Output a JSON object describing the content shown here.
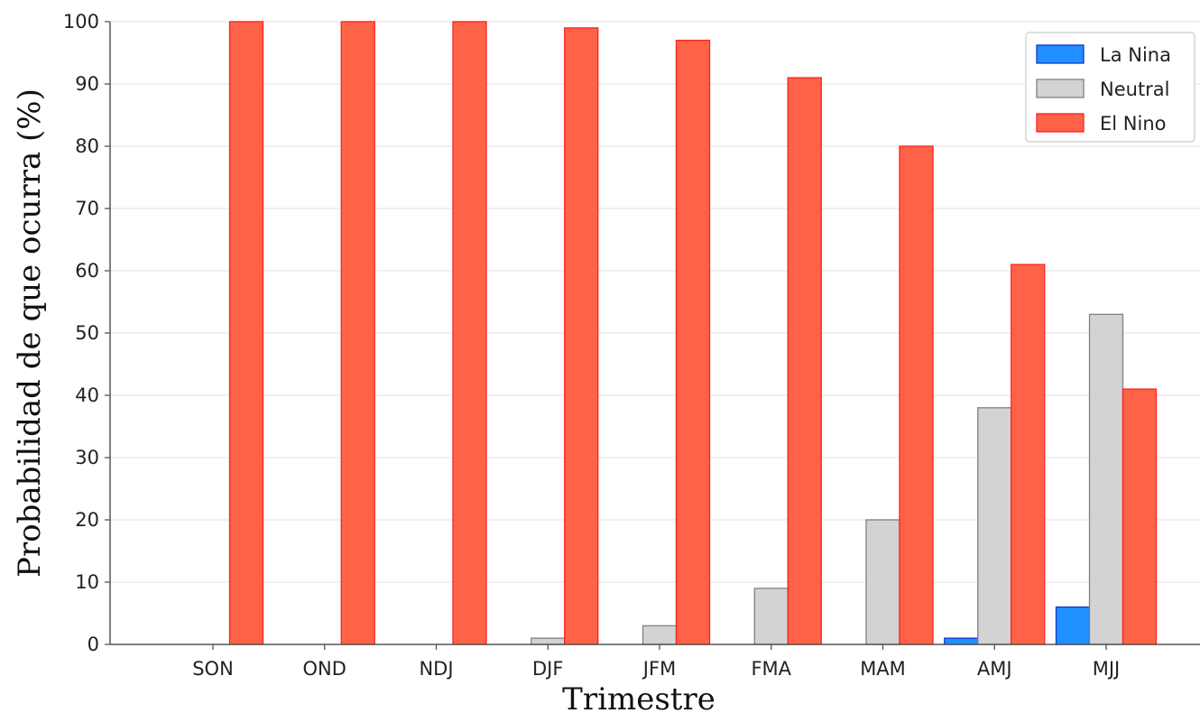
{
  "chart_data": {
    "type": "bar",
    "title": "",
    "xlabel": "Trimestre",
    "ylabel": "Probabilidad de que ocurra (%)",
    "categories": [
      "SON",
      "OND",
      "NDJ",
      "DJF",
      "JFM",
      "FMA",
      "MAM",
      "AMJ",
      "MJJ"
    ],
    "ylim": [
      0,
      100
    ],
    "yticks": [
      0,
      10,
      20,
      30,
      40,
      50,
      60,
      70,
      80,
      90,
      100
    ],
    "grid": "horizontal",
    "legend_position": "top-right",
    "series": [
      {
        "name": "La Nina",
        "color": "#1e90ff",
        "edge": "#1a33cc",
        "values": [
          0,
          0,
          0,
          0,
          0,
          0,
          0,
          1,
          6
        ]
      },
      {
        "name": "Neutral",
        "color": "#d3d3d3",
        "edge": "#808080",
        "values": [
          0,
          0,
          0,
          1,
          3,
          9,
          20,
          38,
          53
        ]
      },
      {
        "name": "El Nino",
        "color": "#ff6347",
        "edge": "#ff2020",
        "values": [
          100,
          100,
          100,
          99,
          97,
          91,
          80,
          61,
          41
        ]
      }
    ]
  }
}
